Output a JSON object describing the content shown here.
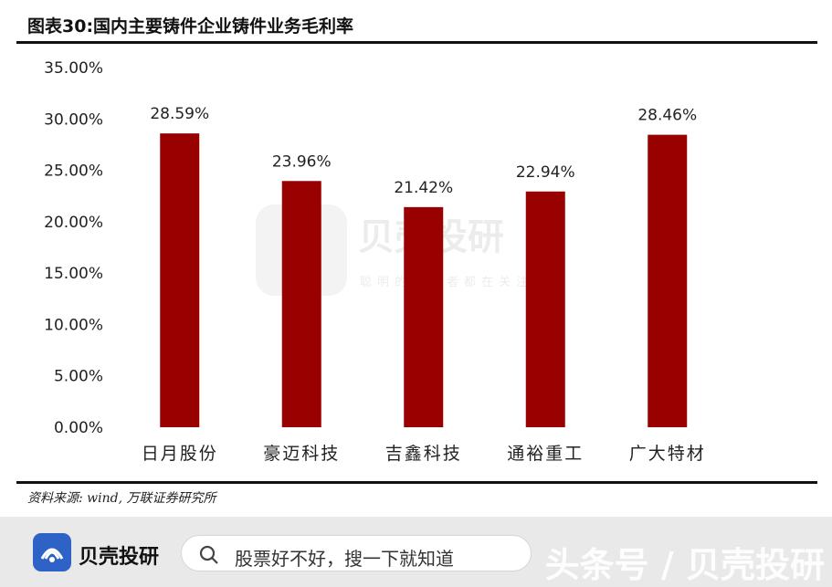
{
  "title": "图表30:国内主要铸件企业铸件业务毛利率",
  "source": "资料来源: wind, 万联证券研究所",
  "chart_data": {
    "type": "bar",
    "categories": [
      "日月股份",
      "豪迈科技",
      "吉鑫科技",
      "通裕重工",
      "广大特材"
    ],
    "values": [
      28.59,
      23.96,
      21.42,
      22.94,
      28.46
    ],
    "data_labels": [
      "28.59%",
      "23.96%",
      "21.42%",
      "22.94%",
      "28.46%"
    ],
    "yticks": [
      "0.00%",
      "5.00%",
      "10.00%",
      "15.00%",
      "20.00%",
      "25.00%",
      "30.00%",
      "35.00%"
    ],
    "ylim": [
      0,
      35
    ],
    "bar_color": "#990000",
    "grid": false,
    "legend": "none"
  },
  "watermark": {
    "brand": "贝壳投研",
    "slogan": "聪明的投资者都在关注"
  },
  "footer": {
    "logo_text": "贝壳投研",
    "search_text": "股票好不好，搜一下就知道",
    "watermark_text": "头条号 / 贝壳投研"
  }
}
